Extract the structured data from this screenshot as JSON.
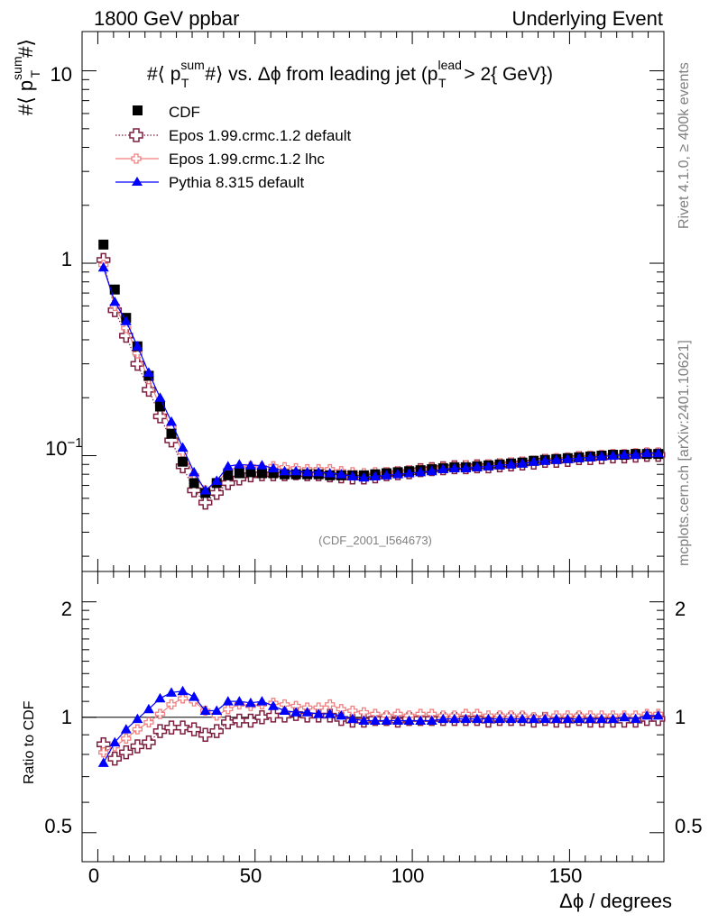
{
  "header": {
    "left": "1800 GeV ppbar",
    "right": "Underlying Event"
  },
  "side_text": {
    "rivet": "Rivet 4.1.0, ≥ 400k events",
    "mcplots": "mcplots.cern.ch [arXiv:2401.10621]"
  },
  "watermark": "(CDF_2001_I564673)",
  "chart_data": [
    {
      "panel": "main",
      "type": "scatter",
      "title": "#⟨ p_T^sum #⟩ vs. Δϕ from leading jet  (p_T^lead > 2{ GeV})",
      "title_parts": {
        "pre": "#⟨ p",
        "sup": "sum",
        "sub": "T",
        "mid": "#⟩ vs. Δϕ from leading jet  (p",
        "sup2": "lead",
        "sub2": "T",
        "post": " > 2{ GeV})"
      },
      "ylabel": {
        "pre": "#⟨ p",
        "sup": "sum",
        "sub": "T",
        "post": "#⟩"
      },
      "xlabel": "Δϕ / degrees",
      "yscale": "log",
      "ylim": [
        0.025,
        16
      ],
      "xlim": [
        -5,
        180
      ],
      "y_tick_labels": [
        {
          "value": 10,
          "text": "10"
        },
        {
          "value": 1,
          "text": "1"
        },
        {
          "value": 0.1,
          "base": "10",
          "exp": "−1"
        }
      ],
      "x": [
        1.8,
        5.4,
        9.0,
        12.6,
        16.2,
        19.8,
        23.4,
        27.0,
        30.6,
        34.2,
        37.8,
        41.4,
        45.0,
        48.6,
        52.2,
        55.8,
        59.4,
        63.0,
        66.6,
        70.2,
        73.8,
        77.4,
        81.0,
        84.6,
        88.2,
        91.8,
        95.4,
        99.0,
        102.6,
        106.2,
        109.8,
        113.4,
        117.0,
        120.6,
        124.2,
        127.8,
        131.4,
        135.0,
        138.6,
        142.2,
        145.8,
        149.4,
        153.0,
        156.6,
        160.2,
        163.8,
        167.4,
        171.0,
        174.6,
        178.2
      ],
      "series": [
        {
          "name": "CDF",
          "marker": "square",
          "color": "#000000",
          "values": [
            1.25,
            0.73,
            0.52,
            0.37,
            0.26,
            0.18,
            0.13,
            0.093,
            0.072,
            0.064,
            0.072,
            0.079,
            0.081,
            0.082,
            0.081,
            0.081,
            0.08,
            0.08,
            0.08,
            0.08,
            0.079,
            0.079,
            0.079,
            0.079,
            0.08,
            0.081,
            0.082,
            0.083,
            0.084,
            0.085,
            0.086,
            0.087,
            0.087,
            0.088,
            0.089,
            0.09,
            0.091,
            0.092,
            0.094,
            0.095,
            0.096,
            0.097,
            0.098,
            0.099,
            0.1,
            0.101,
            0.101,
            0.102,
            0.102,
            0.102
          ]
        },
        {
          "name": "Epos 1.99.crmc.1.2 default",
          "marker": "open-cross",
          "color": "#7f1f3f",
          "line": "dotted",
          "values": [
            1.04,
            0.57,
            0.42,
            0.3,
            0.22,
            0.16,
            0.12,
            0.088,
            0.066,
            0.057,
            0.064,
            0.072,
            0.076,
            0.079,
            0.08,
            0.08,
            0.08,
            0.081,
            0.08,
            0.08,
            0.079,
            0.078,
            0.077,
            0.077,
            0.078,
            0.08,
            0.081,
            0.082,
            0.084,
            0.085,
            0.086,
            0.087,
            0.087,
            0.088,
            0.088,
            0.089,
            0.09,
            0.091,
            0.092,
            0.094,
            0.094,
            0.095,
            0.097,
            0.097,
            0.098,
            0.099,
            0.099,
            0.1,
            0.101,
            0.101
          ]
        },
        {
          "name": "Epos 1.99.crmc.1.2 lhc",
          "marker": "open-cross",
          "color": "#f08080",
          "line": "solid",
          "values": [
            0.98,
            0.6,
            0.46,
            0.34,
            0.25,
            0.18,
            0.14,
            0.104,
            0.079,
            0.066,
            0.072,
            0.084,
            0.087,
            0.088,
            0.087,
            0.088,
            0.087,
            0.086,
            0.085,
            0.085,
            0.085,
            0.083,
            0.082,
            0.081,
            0.082,
            0.082,
            0.083,
            0.084,
            0.085,
            0.086,
            0.087,
            0.088,
            0.089,
            0.089,
            0.09,
            0.091,
            0.092,
            0.093,
            0.094,
            0.096,
            0.097,
            0.098,
            0.099,
            0.1,
            0.101,
            0.102,
            0.102,
            0.103,
            0.104,
            0.104
          ]
        },
        {
          "name": "Pythia 8.315 default",
          "marker": "triangle",
          "color": "#0000ff",
          "line": "solid",
          "values": [
            0.95,
            0.63,
            0.5,
            0.37,
            0.27,
            0.2,
            0.15,
            0.11,
            0.082,
            0.066,
            0.074,
            0.088,
            0.09,
            0.089,
            0.089,
            0.086,
            0.083,
            0.083,
            0.082,
            0.082,
            0.081,
            0.08,
            0.078,
            0.077,
            0.078,
            0.079,
            0.08,
            0.081,
            0.082,
            0.083,
            0.085,
            0.086,
            0.086,
            0.087,
            0.088,
            0.089,
            0.09,
            0.091,
            0.093,
            0.094,
            0.095,
            0.096,
            0.097,
            0.098,
            0.099,
            0.1,
            0.101,
            0.101,
            0.103,
            0.103
          ]
        }
      ],
      "legend": "top-left"
    },
    {
      "panel": "ratio",
      "type": "scatter",
      "ylabel": "Ratio to CDF",
      "yscale": "log",
      "ylim": [
        0.42,
        2.4
      ],
      "xlim": [
        -5,
        180
      ],
      "reference_line": 1,
      "y_tick_labels": [
        {
          "value": 2,
          "text": "2"
        },
        {
          "value": 1,
          "text": "1"
        },
        {
          "value": 0.5,
          "text": "0.5"
        }
      ],
      "x_tick_labels": [
        {
          "value": 0,
          "text": "0"
        },
        {
          "value": 50,
          "text": "50"
        },
        {
          "value": 100,
          "text": "100"
        },
        {
          "value": 150,
          "text": "150"
        }
      ],
      "x": [
        1.8,
        5.4,
        9.0,
        12.6,
        16.2,
        19.8,
        23.4,
        27.0,
        30.6,
        34.2,
        37.8,
        41.4,
        45.0,
        48.6,
        52.2,
        55.8,
        59.4,
        63.0,
        66.6,
        70.2,
        73.8,
        77.4,
        81.0,
        84.6,
        88.2,
        91.8,
        95.4,
        99.0,
        102.6,
        106.2,
        109.8,
        113.4,
        117.0,
        120.6,
        124.2,
        127.8,
        131.4,
        135.0,
        138.6,
        142.2,
        145.8,
        149.4,
        153.0,
        156.6,
        160.2,
        163.8,
        167.4,
        171.0,
        174.6,
        178.2
      ],
      "series": [
        {
          "name": "Epos 1.99.crmc.1.2 default",
          "marker": "open-cross",
          "color": "#7f1f3f",
          "line": "dotted",
          "values": [
            0.85,
            0.78,
            0.81,
            0.84,
            0.86,
            0.92,
            0.94,
            0.94,
            0.93,
            0.9,
            0.92,
            0.97,
            0.98,
            0.98,
            1.0,
            1.01,
            1.01,
            1.02,
            1.01,
            1.01,
            1.01,
            0.99,
            0.98,
            0.98,
            0.99,
            0.99,
            0.98,
            0.99,
            0.99,
            0.99,
            0.99,
            0.99,
            0.99,
            0.99,
            0.98,
            0.99,
            0.99,
            0.99,
            0.98,
            0.99,
            0.98,
            0.98,
            0.99,
            0.98,
            0.98,
            0.98,
            0.98,
            0.98,
            0.99,
            0.99
          ]
        },
        {
          "name": "Epos 1.99.crmc.1.2 lhc",
          "marker": "open-cross",
          "color": "#f08080",
          "line": "solid",
          "values": [
            0.81,
            0.84,
            0.88,
            0.93,
            0.97,
            1.02,
            1.08,
            1.12,
            1.1,
            1.04,
            1.01,
            1.05,
            1.08,
            1.07,
            1.08,
            1.09,
            1.08,
            1.07,
            1.06,
            1.06,
            1.08,
            1.05,
            1.04,
            1.03,
            1.02,
            1.01,
            1.02,
            1.01,
            1.02,
            1.02,
            1.01,
            1.01,
            1.02,
            1.02,
            1.01,
            1.01,
            1.01,
            1.01,
            1.0,
            1.0,
            1.01,
            1.01,
            1.01,
            1.01,
            1.01,
            1.01,
            1.01,
            1.01,
            1.02,
            1.02
          ]
        },
        {
          "name": "Pythia 8.315 default",
          "marker": "triangle",
          "color": "#0000ff",
          "line": "solid",
          "values": [
            0.76,
            0.86,
            0.93,
            0.99,
            1.05,
            1.12,
            1.16,
            1.17,
            1.13,
            1.04,
            1.04,
            1.1,
            1.1,
            1.09,
            1.1,
            1.07,
            1.04,
            1.03,
            1.03,
            1.02,
            1.02,
            1.01,
            0.99,
            0.98,
            0.98,
            0.98,
            0.98,
            0.98,
            0.98,
            0.98,
            0.99,
            0.99,
            0.99,
            0.99,
            0.99,
            0.99,
            0.99,
            0.99,
            0.99,
            0.99,
            0.99,
            0.99,
            0.99,
            0.99,
            0.99,
            0.99,
            1.0,
            0.99,
            1.01,
            1.01
          ]
        }
      ]
    }
  ]
}
